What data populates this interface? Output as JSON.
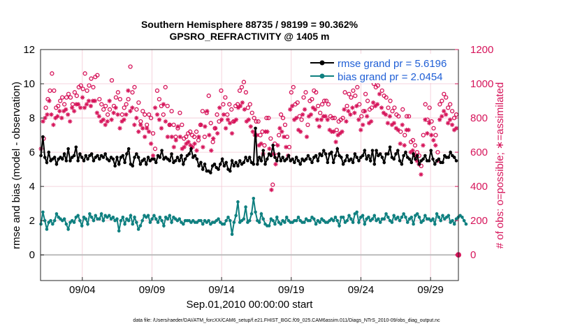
{
  "chart_data": {
    "type": "line",
    "title_line1": "Southern Hemisphere 88735 / 98199 = 90.362%",
    "title_line2": "GPSRO_REFRACTIVITY @ 1405 m",
    "xlabel": "Sep.01,2010 00:00:00 start",
    "ylabel_left": "rmse and bias (model - observation)",
    "ylabel_right": "# of obs: o=possible; ∗=assimilated",
    "footer": "data file: /Users/raeder/DAI/ATM_forcXX/CAM6_setup/f.e21.FHIST_BGC.f09_025.CAM6assim.011/Diags_NTrS_2010-09/obs_diag_output.nc",
    "xlim": [
      1.0,
      31.0
    ],
    "x_ticks": [
      4,
      9,
      14,
      19,
      24,
      29
    ],
    "x_tick_labels": [
      "09/04",
      "09/09",
      "09/14",
      "09/19",
      "09/24",
      "09/29"
    ],
    "ylim_left": [
      -1.5,
      12
    ],
    "yticks_left": [
      "0",
      "2",
      "4",
      "6",
      "8",
      "10",
      "12"
    ],
    "ylim_right": [
      -150,
      1200
    ],
    "yticks_right": [
      "0",
      "200",
      "400",
      "600",
      "800",
      "1000",
      "1200"
    ],
    "legend": [
      {
        "label": "rmse grand pr = 5.6196",
        "color": "#000000"
      },
      {
        "label": "bias grand pr = 2.0454",
        "color": "#0f8080"
      }
    ],
    "colors": {
      "rmse": "#000000",
      "bias": "#0f8080",
      "obs": "#d6145a",
      "legend_text": "#1f5fd6",
      "zero_line": "#bbbbbb"
    },
    "rmse": [
      5.8,
      6.9,
      5.7,
      5.4,
      6.0,
      5.5,
      5.6,
      5.7,
      5.3,
      5.6,
      5.7,
      5.6,
      5.9,
      5.5,
      6.2,
      5.5,
      5.7,
      5.8,
      6.3,
      5.5,
      5.9,
      5.7,
      5.5,
      5.8,
      5.6,
      5.8,
      5.9,
      5.5,
      5.7,
      5.8,
      5.6,
      5.8,
      5.7,
      5.9,
      5.6,
      5.5,
      5.7,
      5.6,
      5.2,
      5.7,
      5.3,
      5.7,
      5.8,
      5.4,
      5.9,
      6.2,
      5.3,
      5.2,
      5.7,
      5.9,
      5.7,
      5.3,
      5.5,
      5.6,
      5.3,
      5.7,
      5.5,
      5.6,
      5.6,
      5.4,
      5.8,
      5.7,
      6.1,
      5.6,
      5.7,
      5.6,
      5.5,
      5.9,
      5.4,
      5.5,
      5.7,
      5.5,
      5.8,
      5.3,
      5.6,
      5.8,
      5.9,
      6.2,
      5.7,
      5.8,
      5.6,
      5.2,
      5.4,
      5.0,
      5.3,
      4.9,
      4.9,
      4.8,
      5.2,
      5.3,
      5.1,
      5.0,
      5.3,
      5.6,
      5.2,
      5.4,
      5.0,
      4.9,
      5.5,
      5.2,
      5.4,
      5.2,
      5.5,
      5.3,
      5.4,
      5.7,
      5.5,
      5.7,
      5.4,
      5.3,
      7.4,
      5.3,
      5.7,
      5.5,
      6.1,
      5.3,
      5.6,
      5.9,
      5.8,
      6.4,
      5.7,
      5.5,
      5.9,
      5.5,
      5.7,
      5.5,
      5.6,
      5.8,
      5.5,
      5.6,
      5.4,
      5.7,
      5.5,
      5.3,
      5.6,
      5.5,
      5.6,
      5.8,
      5.6,
      5.4,
      5.7,
      5.8,
      5.5,
      5.9,
      5.8,
      6.1,
      5.9,
      5.4,
      5.9,
      6.0,
      5.4,
      5.8,
      6.2,
      5.8,
      5.7,
      5.3,
      5.5,
      5.8,
      5.5,
      5.6,
      5.4,
      5.9,
      5.7,
      5.5,
      5.7,
      5.8,
      6.1,
      5.6,
      5.8,
      5.5,
      6.1,
      5.3,
      6.1,
      5.8,
      5.9,
      5.7,
      5.4,
      5.9,
      5.9,
      6.3,
      5.7,
      5.6,
      5.9,
      6.1,
      5.5,
      5.3,
      5.8,
      6.0,
      5.7,
      5.6,
      5.4,
      5.9,
      5.6,
      5.8,
      5.3,
      5.5,
      5.6,
      5.8,
      5.5,
      5.5,
      6.1,
      5.6,
      5.3,
      5.5,
      5.6,
      5.4,
      5.4,
      5.8,
      5.7,
      5.7,
      6.0,
      5.8,
      5.7,
      5.5
    ],
    "bias": [
      1.8,
      2.5,
      2.0,
      1.5,
      1.9,
      2.0,
      1.8,
      2.0,
      2.4,
      2.2,
      2.1,
      2.0,
      2.1,
      1.8,
      1.5,
      1.9,
      2.0,
      1.9,
      2.2,
      2.3,
      2.0,
      1.7,
      2.2,
      2.1,
      1.8,
      2.4,
      2.2,
      2.0,
      2.3,
      2.1,
      2.1,
      2.4,
      2.0,
      2.3,
      2.2,
      2.3,
      2.1,
      2.2,
      2.0,
      2.1,
      1.4,
      2.0,
      2.2,
      1.8,
      2.1,
      2.0,
      2.3,
      1.8,
      2.2,
      1.9,
      1.5,
      1.7,
      2.0,
      2.3,
      2.2,
      2.3,
      1.9,
      2.1,
      2.3,
      2.1,
      1.9,
      2.2,
      2.0,
      1.7,
      2.2,
      2.1,
      2.3,
      1.9,
      2.2,
      2.1,
      2.0,
      2.1,
      1.9,
      1.8,
      2.0,
      2.0,
      2.0,
      1.9,
      2.0,
      1.9,
      1.9,
      2.0,
      2.0,
      1.8,
      2.0,
      1.9,
      2.0,
      1.8,
      1.9,
      1.9,
      2.0,
      2.1,
      1.9,
      1.8,
      1.8,
      2.0,
      2.2,
      2.0,
      1.2,
      1.9,
      2.3,
      3.1,
      1.9,
      2.0,
      2.1,
      2.8,
      1.9,
      2.0,
      2.4,
      3.3,
      2.5,
      2.0,
      1.9,
      2.4,
      2.1,
      1.8,
      1.7,
      1.7,
      2.1,
      2.0,
      1.8,
      2.2,
      1.9,
      1.8,
      2.0,
      1.9,
      2.2,
      2.0,
      1.9,
      1.9,
      2.0,
      2.0,
      2.2,
      2.0,
      1.9,
      1.9,
      2.1,
      2.0,
      2.0,
      2.2,
      2.1,
      1.8,
      2.0,
      1.9,
      2.1,
      2.0,
      1.9,
      1.9,
      2.0,
      2.1,
      2.0,
      2.2,
      2.0,
      1.7,
      2.2,
      2.2,
      1.9,
      2.0,
      2.3,
      2.1,
      1.9,
      2.4,
      2.5,
      1.9,
      2.2,
      2.3,
      1.8,
      2.1,
      2.2,
      2.0,
      2.1,
      2.3,
      2.0,
      2.1,
      1.9,
      2.1,
      2.1,
      2.4,
      2.2,
      2.0,
      1.9,
      2.3,
      2.1,
      2.2,
      2.0,
      2.2,
      2.4,
      2.2,
      1.9,
      2.1,
      2.2,
      1.8,
      2.3,
      2.4,
      2.2,
      1.9,
      2.0,
      2.3,
      2.1,
      2.1,
      2.0,
      2.1,
      1.8,
      2.4,
      2.2,
      2.0,
      2.3,
      2.1,
      2.2,
      2.3,
      1.9,
      2.0,
      1.8,
      2.1,
      2.2,
      2.3,
      2.2,
      2.0,
      1.8
    ],
    "obs_possible": [
      680,
      860,
      910,
      960,
      1060,
      960,
      860,
      870,
      900,
      920,
      880,
      920,
      940,
      920,
      880,
      950,
      930,
      980,
      990,
      970,
      1060,
      960,
      990,
      1030,
      980,
      1040,
      1050,
      910,
      880,
      850,
      870,
      820,
      850,
      1020,
      870,
      920,
      950,
      910,
      820,
      860,
      880,
      910,
      1100,
      950,
      980,
      850,
      890,
      780,
      840,
      820,
      760,
      820,
      800,
      710,
      620,
      960,
      910,
      870,
      820,
      980,
      870,
      760,
      840,
      760,
      690,
      740,
      830,
      760,
      680,
      690,
      710,
      720,
      700,
      690,
      720,
      670,
      760,
      840,
      690,
      830,
      930,
      770,
      660,
      740,
      820,
      780,
      960,
      880,
      920,
      820,
      880,
      850,
      780,
      870,
      880,
      960,
      980,
      1010,
      950,
      860,
      880,
      830,
      800,
      780,
      780,
      700,
      720,
      640,
      800,
      800,
      680,
      410,
      650,
      580,
      700,
      820,
      800,
      760,
      690,
      630,
      950,
      980,
      880,
      890,
      810,
      790,
      920,
      950,
      760,
      900,
      910,
      960,
      950,
      870,
      830,
      880,
      900,
      900,
      880,
      810,
      800,
      800,
      730,
      780,
      790,
      800,
      950,
      870,
      940,
      920,
      960,
      930,
      980,
      880,
      810,
      840,
      940,
      900,
      850,
      860,
      1000,
      980,
      990,
      1060,
      960,
      930,
      920,
      860,
      900,
      840,
      860,
      820,
      810,
      720,
      850,
      700,
      810,
      810,
      660,
      670,
      640,
      600,
      580,
      520,
      700,
      880,
      790,
      860,
      780,
      740,
      700,
      600,
      880,
      900,
      940,
      920,
      860,
      880,
      840,
      800,
      820
    ],
    "obs_assimilated": [
      620,
      780,
      800,
      820,
      900,
      820,
      760,
      800,
      810,
      840,
      800,
      840,
      850,
      820,
      780,
      860,
      840,
      880,
      880,
      860,
      920,
      860,
      880,
      900,
      870,
      900,
      900,
      830,
      810,
      780,
      790,
      760,
      780,
      900,
      790,
      830,
      860,
      820,
      740,
      780,
      790,
      820,
      960,
      840,
      860,
      760,
      800,
      720,
      760,
      740,
      690,
      740,
      720,
      650,
      580,
      860,
      820,
      790,
      740,
      880,
      780,
      690,
      760,
      690,
      630,
      670,
      750,
      690,
      620,
      630,
      650,
      660,
      640,
      630,
      650,
      610,
      690,
      760,
      630,
      750,
      840,
      700,
      610,
      680,
      740,
      710,
      860,
      790,
      820,
      740,
      790,
      770,
      710,
      780,
      790,
      860,
      870,
      890,
      850,
      780,
      790,
      750,
      720,
      700,
      700,
      640,
      650,
      590,
      720,
      720,
      620,
      380,
      590,
      530,
      640,
      740,
      720,
      690,
      630,
      580,
      850,
      870,
      790,
      800,
      730,
      720,
      820,
      850,
      690,
      810,
      820,
      860,
      850,
      790,
      750,
      790,
      810,
      810,
      790,
      730,
      720,
      720,
      660,
      700,
      710,
      720,
      850,
      780,
      840,
      820,
      860,
      830,
      870,
      790,
      730,
      760,
      840,
      810,
      770,
      780,
      890,
      870,
      880,
      940,
      860,
      830,
      820,
      770,
      810,
      760,
      770,
      740,
      730,
      650,
      760,
      640,
      730,
      730,
      600,
      610,
      580,
      550,
      530,
      470,
      640,
      790,
      710,
      770,
      700,
      670,
      640,
      550,
      790,
      810,
      840,
      820,
      770,
      790,
      760,
      730,
      740
    ],
    "obs_final_value": 0
  }
}
